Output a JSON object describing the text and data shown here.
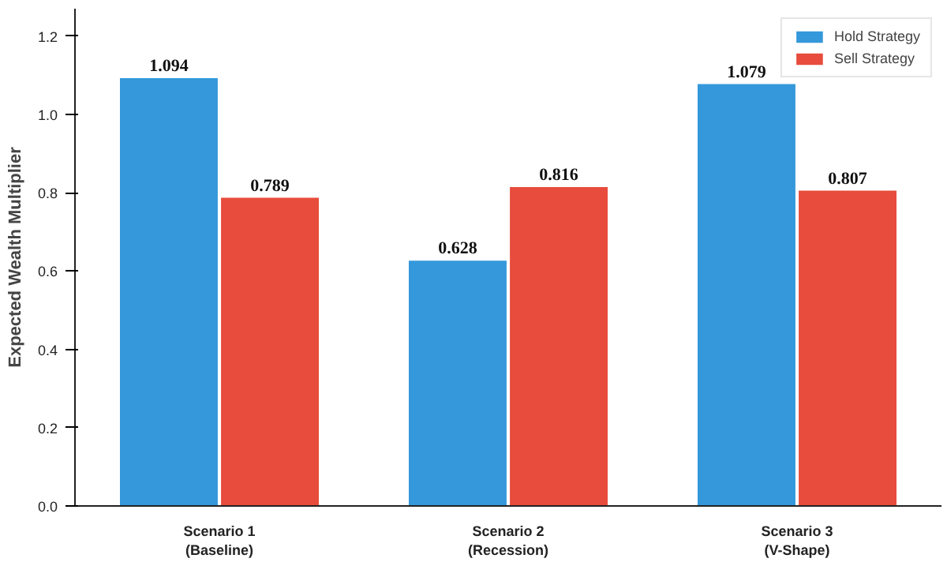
{
  "chart_data": {
    "type": "bar",
    "ylabel": "Expected Wealth Multiplier",
    "categories": [
      "Scenario 1\n(Baseline)",
      "Scenario 2\n(Recession)",
      "Scenario 3\n(V-Shape)"
    ],
    "series": [
      {
        "name": "Hold Strategy",
        "color": "#3498db",
        "values": [
          1.094,
          0.628,
          1.079
        ]
      },
      {
        "name": "Sell Strategy",
        "color": "#e74c3c",
        "values": [
          0.789,
          0.816,
          0.807
        ]
      }
    ],
    "ylim": [
      0,
      1.27
    ],
    "yticks": [
      {
        "value": 0,
        "label": "0.0"
      },
      {
        "value": 0.2,
        "label": "0.2"
      },
      {
        "value": 0.4,
        "label": "0.4"
      },
      {
        "value": 0.6,
        "label": "0.6"
      },
      {
        "value": 0.8,
        "label": "0.8"
      },
      {
        "value": 1,
        "label": "1.0"
      },
      {
        "value": 1.2,
        "label": "1.2"
      }
    ],
    "data_labels": true,
    "legend": "top right",
    "grid": false
  }
}
